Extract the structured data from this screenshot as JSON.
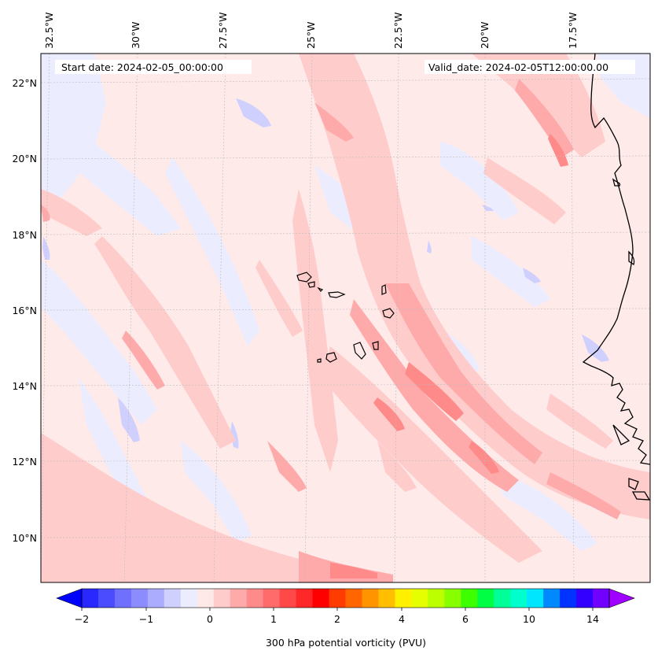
{
  "header": {
    "start_date": "Start date: 2024-02-05_00:00:00",
    "valid_date": "Valid_date: 2024-02-05T12:00:00.00"
  },
  "lon_labels": [
    "32.5°W",
    "30°W",
    "27.5°W",
    "25°W",
    "22.5°W",
    "20°W",
    "17.5°W"
  ],
  "lat_labels": [
    "22°N",
    "20°N",
    "18°N",
    "16°N",
    "14°N",
    "12°N",
    "10°N"
  ],
  "colorbar": {
    "title": "300 hPa potential vorticity (PVU)",
    "tick_labels": [
      "−2",
      "−1",
      "0",
      "1",
      "2",
      "4",
      "6",
      "10",
      "14"
    ],
    "colors": [
      "#0000ff",
      "#2828ff",
      "#4c4cff",
      "#7070ff",
      "#8c8cff",
      "#acacff",
      "#d0d0ff",
      "#ececff",
      "#ffe8e8",
      "#ffcccc",
      "#ffaaaa",
      "#ff8a8a",
      "#ff6a6a",
      "#ff4848",
      "#ff2828",
      "#ff0000",
      "#ff3c00",
      "#ff6600",
      "#ff9400",
      "#ffbf00",
      "#fff000",
      "#e6ff00",
      "#bbff00",
      "#88ff00",
      "#3dff00",
      "#00ff44",
      "#00ff99",
      "#00ffcc",
      "#00e6ff",
      "#0088ff",
      "#0033ff",
      "#3300ff",
      "#7000ff",
      "#a000ff"
    ]
  },
  "map": {
    "background_color": "#ffeaea",
    "coastline_color": "#000000"
  }
}
